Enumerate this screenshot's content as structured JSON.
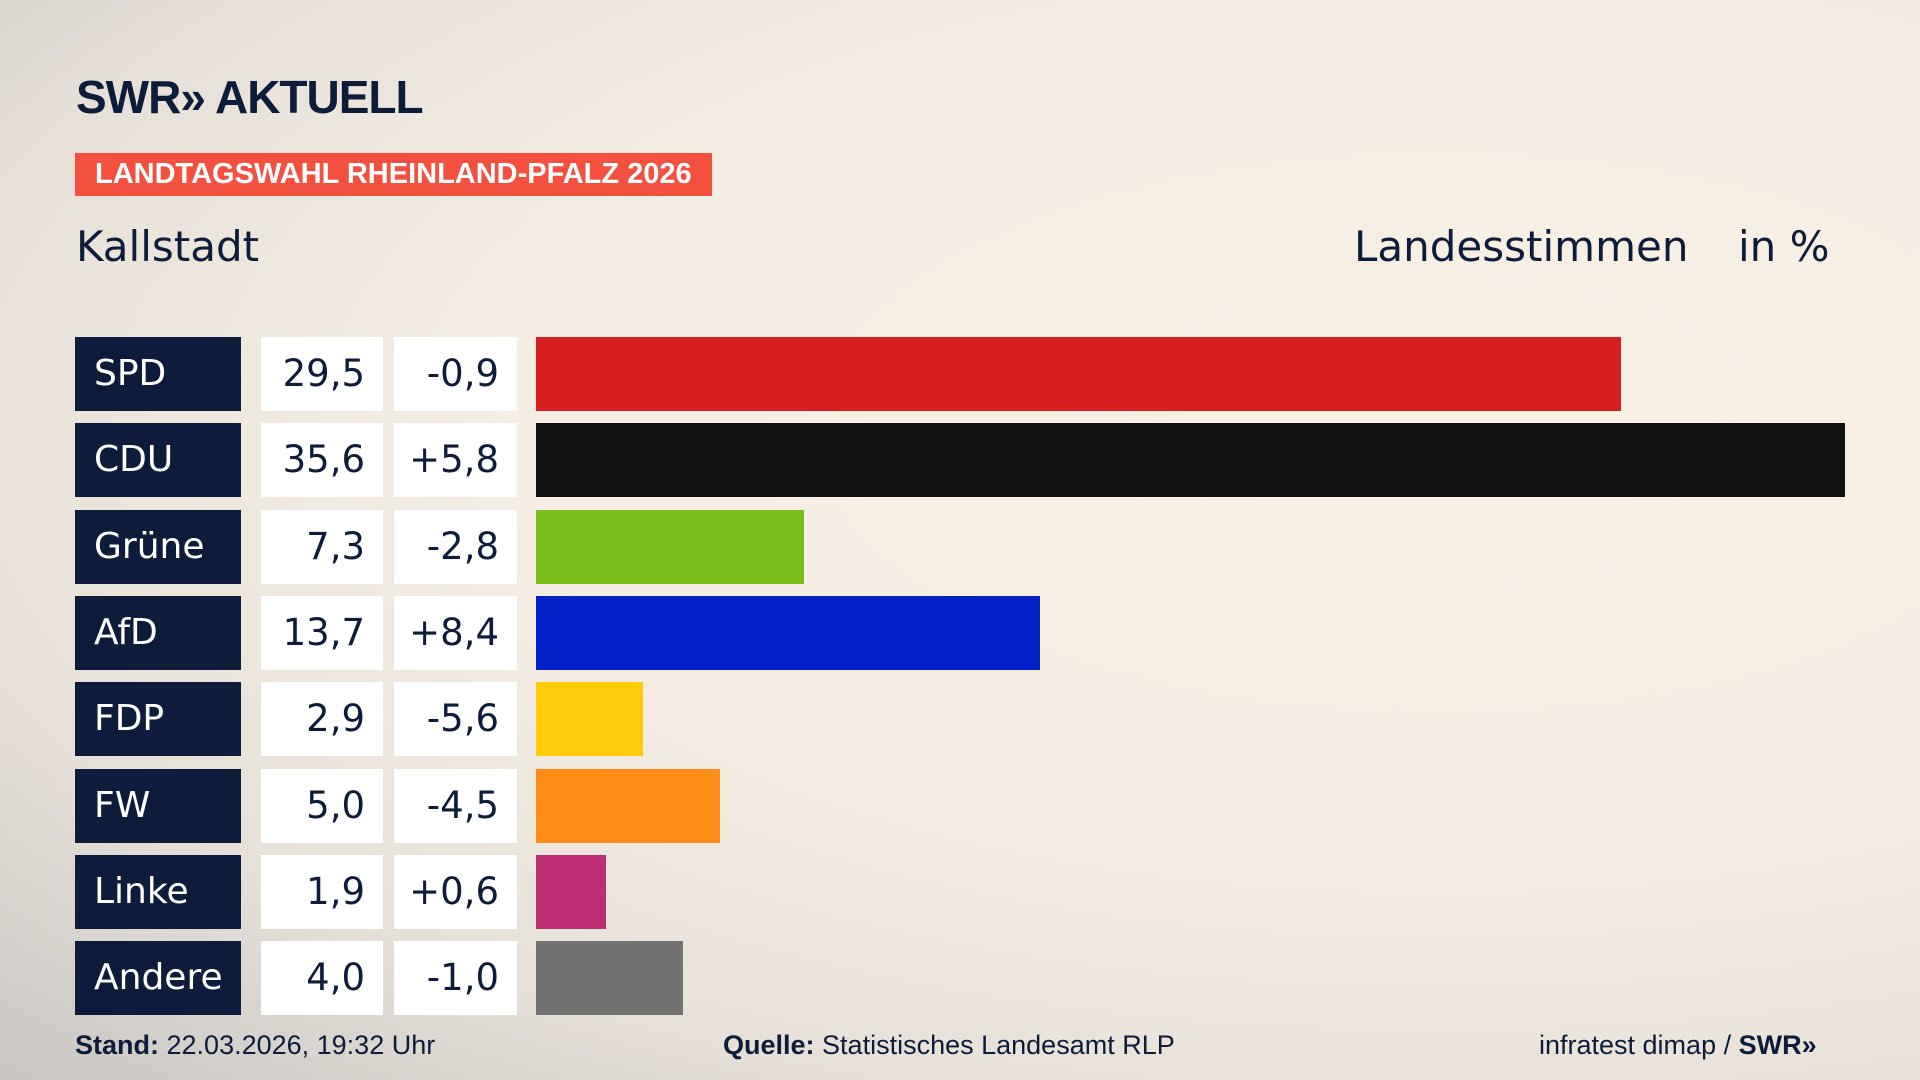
{
  "header": {
    "logo": "SWR» AKTUELL",
    "banner": "LANDTAGSWAHL RHEINLAND-PFALZ 2026",
    "place": "Kallstadt",
    "measure": "Landesstimmen",
    "unit": "in %"
  },
  "chart_data": {
    "type": "bar",
    "orientation": "horizontal",
    "xlim": [
      0,
      35.6
    ],
    "categories": [
      "SPD",
      "CDU",
      "Grüne",
      "AfD",
      "FDP",
      "FW",
      "Linke",
      "Andere"
    ],
    "values": [
      "29,5",
      "35,6",
      "7,3",
      "13,7",
      "2,9",
      "5,0",
      "1,9",
      "4,0"
    ],
    "numeric_values": [
      29.5,
      35.6,
      7.3,
      13.7,
      2.9,
      5.0,
      1.9,
      4.0
    ],
    "diffs": [
      "-0,9",
      "+5,8",
      "-2,8",
      "+8,4",
      "-5,6",
      "-4,5",
      "+0,6",
      "-1,0"
    ],
    "colors": [
      "#d71f20",
      "#121212",
      "#79bc1b",
      "#0021c8",
      "#ffcc0a",
      "#ff8c16",
      "#bc2d72",
      "#727272"
    ]
  },
  "footer": {
    "stand_label": "Stand:",
    "stand_value": "22.03.2026, 19:32 Uhr",
    "source_label": "Quelle:",
    "source_value": "Statistisches Landesamt RLP",
    "credit": "infratest dimap / ",
    "credit_logo": "SWR»"
  }
}
